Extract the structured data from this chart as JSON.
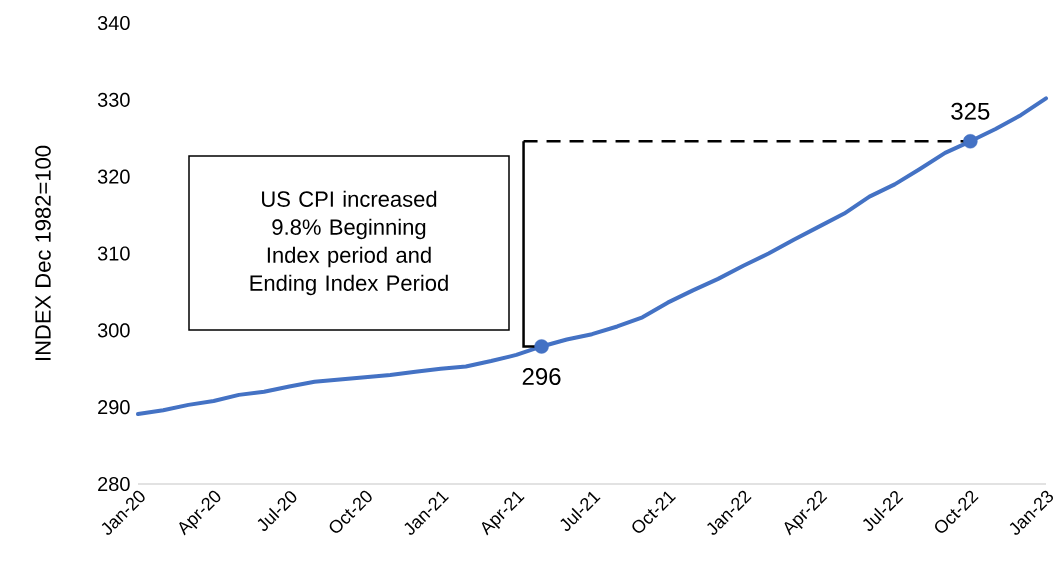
{
  "chart_data": {
    "type": "line",
    "ylabel": "INDEX Dec 1982=100",
    "x": [
      "2020-01",
      "2020-02",
      "2020-03",
      "2020-04",
      "2020-05",
      "2020-06",
      "2020-07",
      "2020-08",
      "2020-09",
      "2020-10",
      "2020-11",
      "2020-12",
      "2021-01",
      "2021-02",
      "2021-03",
      "2021-04",
      "2021-05",
      "2021-06",
      "2021-07",
      "2021-08",
      "2021-09",
      "2021-10",
      "2021-11",
      "2021-12",
      "2022-01",
      "2022-02",
      "2022-03",
      "2022-04",
      "2022-05",
      "2022-06",
      "2022-07",
      "2022-08",
      "2022-09",
      "2022-10",
      "2022-11",
      "2022-12",
      "2023-01"
    ],
    "series": [
      {
        "color": "#4472c4",
        "marker": "none",
        "values": [
          289.1,
          289.6,
          290.3,
          290.8,
          291.6,
          292.0,
          292.7,
          293.3,
          293.6,
          293.9,
          294.2,
          294.6,
          295.0,
          295.3,
          296.0,
          296.8,
          297.9,
          298.8,
          299.5,
          300.5,
          301.7,
          303.6,
          305.2,
          306.7,
          308.4,
          310.0,
          311.8,
          313.5,
          315.2,
          317.4,
          319.0,
          321.0,
          323.1,
          324.6,
          326.2,
          328.0,
          330.2
        ]
      },
      {
        "type": "scatter",
        "color": "#4472c4",
        "marker": "circle",
        "x": [
          "2021-05",
          "2022-10"
        ],
        "values": [
          297.9,
          324.6
        ]
      }
    ],
    "ylim": [
      280,
      340
    ],
    "yticks": [
      280,
      290,
      300,
      310,
      320,
      330,
      340
    ],
    "xlim": [
      "2020-01",
      "2023-01"
    ],
    "xticks": [
      {
        "value": "2020-01",
        "label": "Jan-20"
      },
      {
        "value": "2020-04",
        "label": "Apr-20"
      },
      {
        "value": "2020-07",
        "label": "Jul-20"
      },
      {
        "value": "2020-10",
        "label": "Oct-20"
      },
      {
        "value": "2021-01",
        "label": "Jan-21"
      },
      {
        "value": "2021-04",
        "label": "Apr-21"
      },
      {
        "value": "2021-07",
        "label": "Jul-21"
      },
      {
        "value": "2021-10",
        "label": "Oct-21"
      },
      {
        "value": "2022-01",
        "label": "Jan-22"
      },
      {
        "value": "2022-04",
        "label": "Apr-22"
      },
      {
        "value": "2022-07",
        "label": "Jul-22"
      },
      {
        "value": "2022-10",
        "label": "Oct-22"
      },
      {
        "value": "2023-01",
        "label": "Jan-23"
      }
    ],
    "grid": false,
    "annotations": [
      "US CPI increased 9.8% Beginning Index period  and Ending Index Period",
      {
        "text": "296",
        "x": "2021-05",
        "y": 297.9
      },
      {
        "text": "325",
        "x": "2022-10",
        "y": 324.6
      }
    ]
  }
}
